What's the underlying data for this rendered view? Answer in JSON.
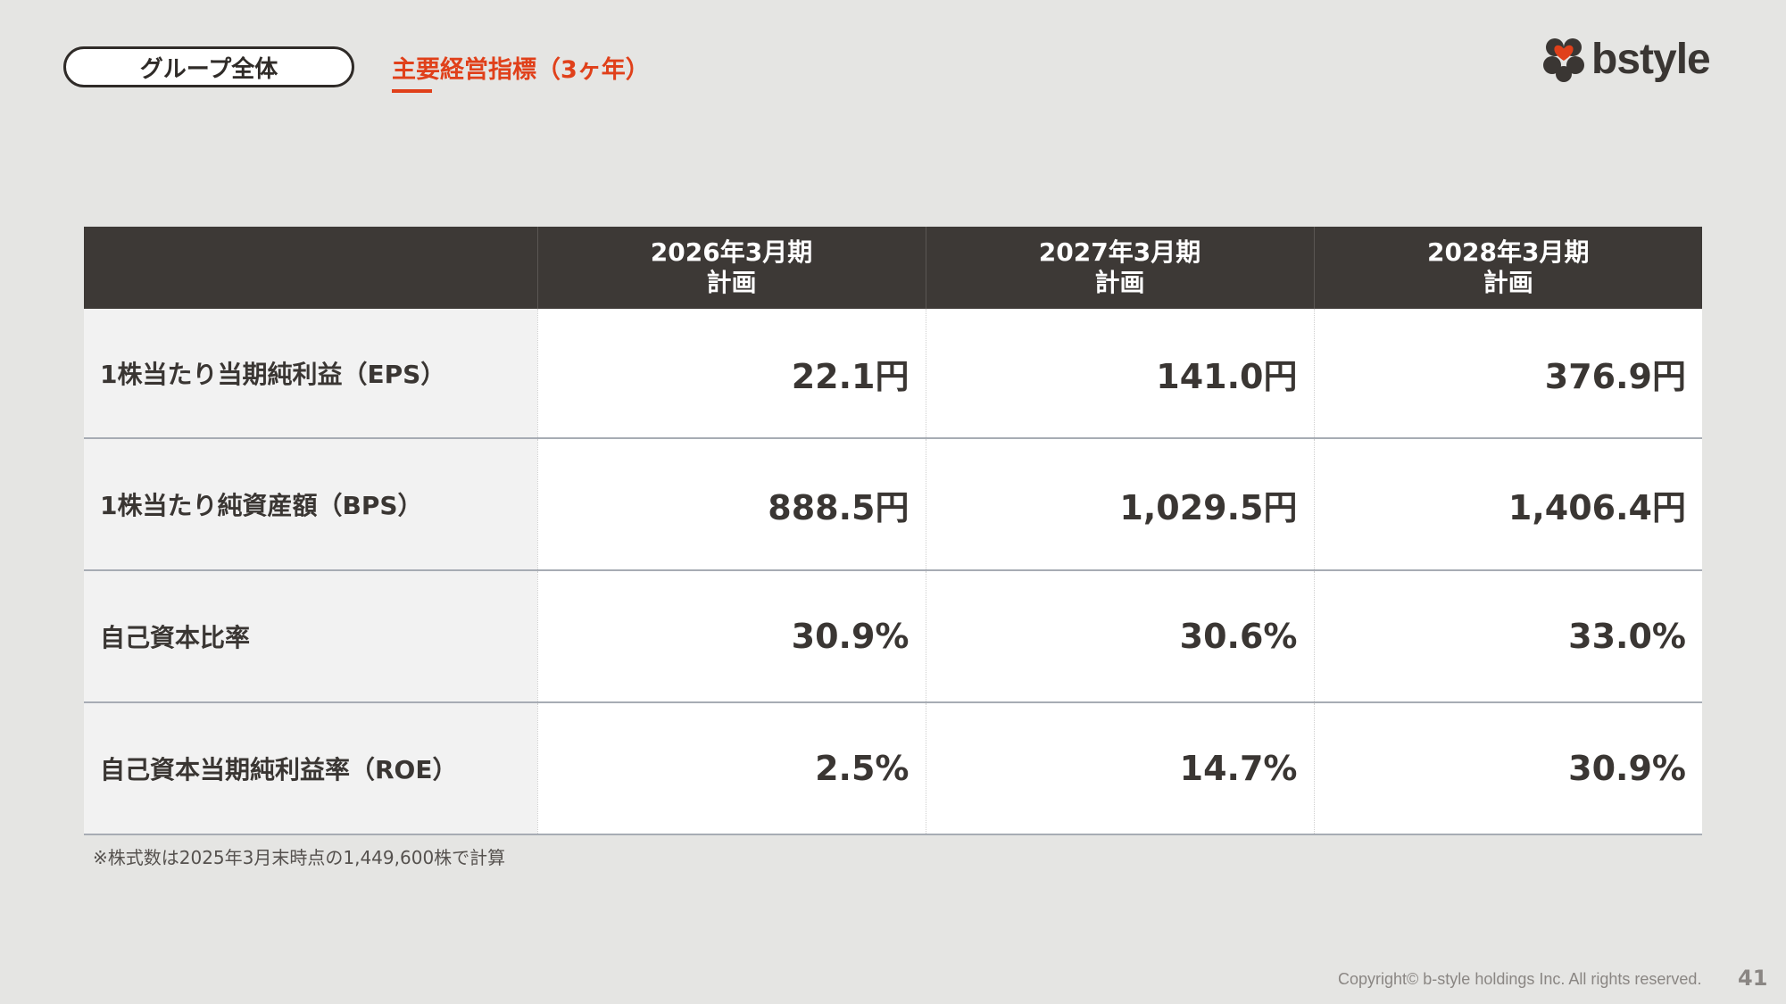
{
  "header": {
    "section_label": "グループ全体",
    "subtitle": "主要経営指標（3ヶ年）",
    "logo_text": "bstyle",
    "logo_icon": "clover-heart-icon",
    "accent_color": "#e0401a"
  },
  "table": {
    "columns": [
      {
        "line1": "2026年3月期",
        "line2": "計画"
      },
      {
        "line1": "2027年3月期",
        "line2": "計画"
      },
      {
        "line1": "2028年3月期",
        "line2": "計画"
      }
    ],
    "rows": [
      {
        "label": "1株当たり当期純利益（EPS）",
        "values": [
          "22.1円",
          "141.0円",
          "376.9円"
        ]
      },
      {
        "label": "1株当たり純資産額（BPS）",
        "values": [
          "888.5円",
          "1,029.5円",
          "1,406.4円"
        ]
      },
      {
        "label": "自己資本比率",
        "values": [
          "30.9%",
          "30.6%",
          "33.0%"
        ]
      },
      {
        "label": "自己資本当期純利益率（ROE）",
        "values": [
          "2.5%",
          "14.7%",
          "30.9%"
        ]
      }
    ]
  },
  "footnote": "※株式数は2025年3月末時点の1,449,600株で計算",
  "footer": {
    "copyright": "Copyright© b-style holdings Inc. All rights reserved.",
    "page_number": "41"
  }
}
